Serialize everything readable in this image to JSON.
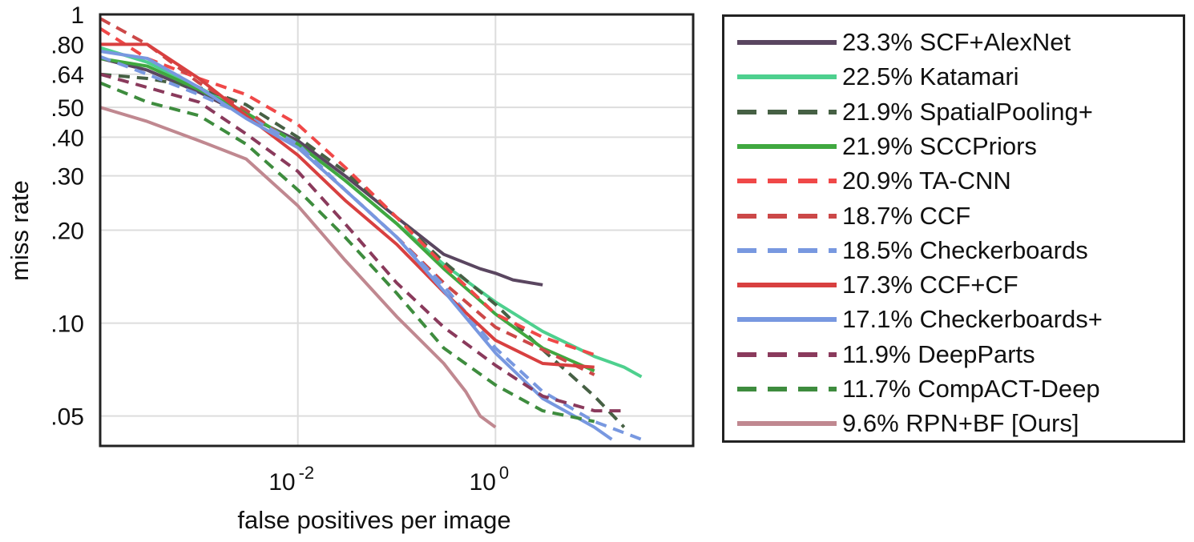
{
  "chart_data": {
    "type": "line",
    "title": "",
    "xlabel": "false positives per image",
    "ylabel": "miss rate",
    "x_scale": "log",
    "y_scale": "log",
    "xlim": [
      0.0001,
      100
    ],
    "ylim": [
      0.04,
      1
    ],
    "x_ticks": [
      0.01,
      1
    ],
    "x_tick_labels": [
      {
        "base": "10",
        "exp": "-2"
      },
      {
        "base": "10",
        "exp": "0"
      }
    ],
    "y_ticks": [
      0.05,
      0.1,
      0.2,
      0.3,
      0.4,
      0.5,
      0.64,
      0.8,
      1
    ],
    "y_tick_labels": [
      ".05",
      ".10",
      ".20",
      ".30",
      ".40",
      ".50",
      ".64",
      ".80",
      "1"
    ],
    "grid": true,
    "legend_position": "right",
    "series": [
      {
        "name": "23.3% SCF+AlexNet",
        "color": "#5a4660",
        "dashed": false,
        "points": [
          [
            0.0001,
            0.72
          ],
          [
            0.0003,
            0.66
          ],
          [
            0.001,
            0.56
          ],
          [
            0.003,
            0.47
          ],
          [
            0.01,
            0.39
          ],
          [
            0.03,
            0.3
          ],
          [
            0.1,
            0.22
          ],
          [
            0.3,
            0.167
          ],
          [
            0.7,
            0.15
          ],
          [
            1,
            0.145
          ],
          [
            1.5,
            0.138
          ],
          [
            3,
            0.133
          ]
        ]
      },
      {
        "name": "22.5% Katamari",
        "color": "#4ed08e",
        "dashed": false,
        "points": [
          [
            0.0001,
            0.78
          ],
          [
            0.0003,
            0.7
          ],
          [
            0.001,
            0.58
          ],
          [
            0.003,
            0.48
          ],
          [
            0.01,
            0.38
          ],
          [
            0.03,
            0.29
          ],
          [
            0.1,
            0.21
          ],
          [
            0.3,
            0.155
          ],
          [
            1,
            0.117
          ],
          [
            3,
            0.094
          ],
          [
            10,
            0.078
          ],
          [
            20,
            0.072
          ],
          [
            30,
            0.067
          ]
        ]
      },
      {
        "name": "21.9% SpatialPooling+",
        "color": "#466044",
        "dashed": true,
        "points": [
          [
            0.0001,
            0.64
          ],
          [
            0.0003,
            0.62
          ],
          [
            0.001,
            0.58
          ],
          [
            0.003,
            0.51
          ],
          [
            0.01,
            0.4
          ],
          [
            0.03,
            0.31
          ],
          [
            0.1,
            0.22
          ],
          [
            0.3,
            0.158
          ],
          [
            1,
            0.115
          ],
          [
            3,
            0.082
          ],
          [
            10,
            0.058
          ],
          [
            20,
            0.046
          ]
        ]
      },
      {
        "name": "21.9% SCCPriors",
        "color": "#40a840",
        "dashed": false,
        "points": [
          [
            0.0001,
            0.72
          ],
          [
            0.0003,
            0.68
          ],
          [
            0.001,
            0.57
          ],
          [
            0.003,
            0.48
          ],
          [
            0.01,
            0.38
          ],
          [
            0.03,
            0.29
          ],
          [
            0.1,
            0.21
          ],
          [
            0.3,
            0.15
          ],
          [
            1,
            0.107
          ],
          [
            3,
            0.083
          ],
          [
            10,
            0.07
          ]
        ]
      },
      {
        "name": "20.9% TA-CNN",
        "color": "#f04848",
        "dashed": true,
        "points": [
          [
            0.0001,
            0.9
          ],
          [
            0.0003,
            0.72
          ],
          [
            0.001,
            0.62
          ],
          [
            0.003,
            0.55
          ],
          [
            0.01,
            0.44
          ],
          [
            0.03,
            0.32
          ],
          [
            0.1,
            0.22
          ],
          [
            0.3,
            0.154
          ],
          [
            1,
            0.107
          ],
          [
            3,
            0.09
          ],
          [
            10,
            0.079
          ]
        ]
      },
      {
        "name": "18.7% CCF",
        "color": "#cc4848",
        "dashed": true,
        "points": [
          [
            0.0001,
            0.97
          ],
          [
            0.0003,
            0.8
          ],
          [
            0.001,
            0.6
          ],
          [
            0.003,
            0.49
          ],
          [
            0.01,
            0.37
          ],
          [
            0.03,
            0.27
          ],
          [
            0.1,
            0.19
          ],
          [
            0.3,
            0.135
          ],
          [
            1,
            0.097
          ],
          [
            3,
            0.082
          ],
          [
            10,
            0.068
          ]
        ]
      },
      {
        "name": "18.5% Checkerboards",
        "color": "#7898e0",
        "dashed": true,
        "points": [
          [
            0.0001,
            0.73
          ],
          [
            0.0003,
            0.64
          ],
          [
            0.001,
            0.55
          ],
          [
            0.003,
            0.47
          ],
          [
            0.01,
            0.38
          ],
          [
            0.03,
            0.27
          ],
          [
            0.1,
            0.19
          ],
          [
            0.3,
            0.132
          ],
          [
            1,
            0.083
          ],
          [
            3,
            0.06
          ],
          [
            10,
            0.048
          ],
          [
            30,
            0.042
          ]
        ]
      },
      {
        "name": "17.3% CCF+CF",
        "color": "#d84040",
        "dashed": false,
        "points": [
          [
            0.0001,
            0.8
          ],
          [
            0.0003,
            0.8
          ],
          [
            0.001,
            0.62
          ],
          [
            0.003,
            0.47
          ],
          [
            0.01,
            0.35
          ],
          [
            0.03,
            0.25
          ],
          [
            0.1,
            0.18
          ],
          [
            0.3,
            0.126
          ],
          [
            1,
            0.088
          ],
          [
            3,
            0.074
          ],
          [
            10,
            0.072
          ]
        ]
      },
      {
        "name": "17.1% Checkerboards+",
        "color": "#7898e0",
        "dashed": false,
        "points": [
          [
            0.0001,
            0.76
          ],
          [
            0.0003,
            0.72
          ],
          [
            0.001,
            0.58
          ],
          [
            0.003,
            0.46
          ],
          [
            0.01,
            0.37
          ],
          [
            0.03,
            0.27
          ],
          [
            0.1,
            0.19
          ],
          [
            0.3,
            0.127
          ],
          [
            1,
            0.08
          ],
          [
            3,
            0.057
          ],
          [
            10,
            0.046
          ],
          [
            15,
            0.042
          ]
        ]
      },
      {
        "name": "11.9% DeepParts",
        "color": "#8a3a5c",
        "dashed": true,
        "points": [
          [
            0.0001,
            0.64
          ],
          [
            0.0003,
            0.58
          ],
          [
            0.001,
            0.52
          ],
          [
            0.003,
            0.41
          ],
          [
            0.01,
            0.31
          ],
          [
            0.03,
            0.21
          ],
          [
            0.1,
            0.135
          ],
          [
            0.3,
            0.097
          ],
          [
            1,
            0.073
          ],
          [
            3,
            0.058
          ],
          [
            10,
            0.052
          ],
          [
            20,
            0.052
          ]
        ]
      },
      {
        "name": "11.7% CompACT-Deep",
        "color": "#3e8c3e",
        "dashed": true,
        "points": [
          [
            0.0001,
            0.6
          ],
          [
            0.0003,
            0.52
          ],
          [
            0.001,
            0.47
          ],
          [
            0.003,
            0.38
          ],
          [
            0.01,
            0.27
          ],
          [
            0.03,
            0.19
          ],
          [
            0.1,
            0.125
          ],
          [
            0.3,
            0.083
          ],
          [
            1,
            0.063
          ],
          [
            3,
            0.052
          ],
          [
            10,
            0.048
          ]
        ]
      },
      {
        "name": "9.6% RPN+BF [Ours]",
        "color": "#c08890",
        "dashed": false,
        "points": [
          [
            0.0001,
            0.5
          ],
          [
            0.0003,
            0.45
          ],
          [
            0.001,
            0.39
          ],
          [
            0.003,
            0.34
          ],
          [
            0.01,
            0.24
          ],
          [
            0.03,
            0.16
          ],
          [
            0.1,
            0.105
          ],
          [
            0.3,
            0.074
          ],
          [
            0.5,
            0.06
          ],
          [
            0.7,
            0.05
          ],
          [
            1,
            0.046
          ]
        ]
      }
    ]
  }
}
